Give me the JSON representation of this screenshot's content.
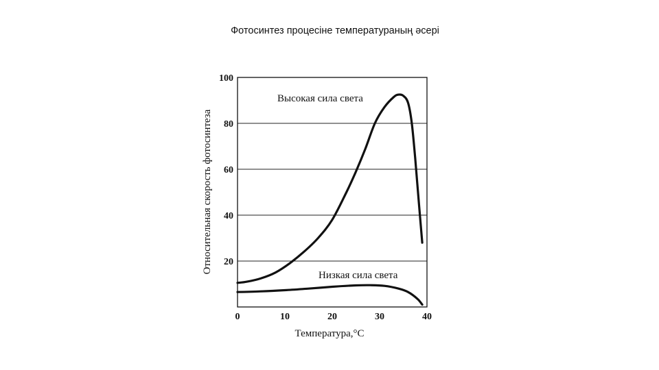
{
  "slide": {
    "title": "Фотосинтез процесіне температураның әсері"
  },
  "chart_data": {
    "type": "line",
    "title": "",
    "xlabel": "Температура,°C",
    "ylabel": "Относительная скорость фотосинтеза",
    "xlim": [
      0,
      40
    ],
    "ylim": [
      0,
      100
    ],
    "xticks": [
      0,
      10,
      20,
      30,
      40
    ],
    "yticks": [
      20,
      40,
      60,
      80,
      100
    ],
    "grid": "horizontal",
    "series": [
      {
        "name": "Высокая сила света",
        "x": [
          0,
          2,
          5,
          8,
          11,
          14,
          17,
          20,
          23,
          25,
          27,
          29,
          31,
          33,
          34,
          35,
          36,
          36.8,
          37.5,
          38.3,
          39
        ],
        "y": [
          10.5,
          11,
          12.5,
          15,
          19,
          24,
          30,
          38,
          50,
          59,
          69,
          80,
          87,
          91.5,
          92.5,
          92,
          89,
          80,
          65,
          45,
          28
        ]
      },
      {
        "name": "Низкая сила света",
        "x": [
          0,
          5,
          10,
          15,
          20,
          25,
          28,
          31,
          34,
          36,
          38,
          39
        ],
        "y": [
          6.5,
          6.8,
          7.3,
          8,
          8.8,
          9.4,
          9.5,
          9.2,
          8,
          6.5,
          3.5,
          1
        ]
      }
    ]
  }
}
